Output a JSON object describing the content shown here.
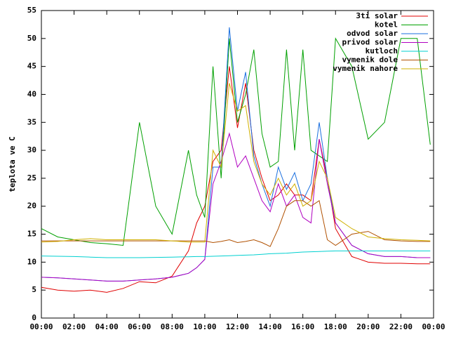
{
  "chart_data": {
    "type": "line",
    "ylabel": "teplota ve C",
    "x": [
      0,
      1,
      2,
      3,
      4,
      5,
      6,
      7,
      8,
      9,
      9.5,
      10,
      10.5,
      11,
      11.5,
      12,
      12.5,
      13,
      13.5,
      14,
      14.5,
      15,
      15.5,
      16,
      16.5,
      17,
      17.5,
      18,
      19,
      20,
      21,
      22,
      23,
      23.8
    ],
    "xlim": [
      0,
      24
    ],
    "xticks": [
      {
        "value": 0,
        "label": "00:00"
      },
      {
        "value": 2,
        "label": "02:00"
      },
      {
        "value": 4,
        "label": "04:00"
      },
      {
        "value": 6,
        "label": "06:00"
      },
      {
        "value": 8,
        "label": "08:00"
      },
      {
        "value": 10,
        "label": "10:00"
      },
      {
        "value": 12,
        "label": "12:00"
      },
      {
        "value": 14,
        "label": "14:00"
      },
      {
        "value": 16,
        "label": "16:00"
      },
      {
        "value": 18,
        "label": "18:00"
      },
      {
        "value": 20,
        "label": "20:00"
      },
      {
        "value": 22,
        "label": "22:00"
      },
      {
        "value": 24,
        "label": "00:00"
      }
    ],
    "ylim": [
      0,
      55
    ],
    "yticks": [
      0,
      5,
      10,
      15,
      20,
      25,
      30,
      35,
      40,
      45,
      50,
      55
    ],
    "legend": "top-right",
    "series": [
      {
        "name": "3ti solar",
        "color": "#e00000",
        "values": [
          5.5,
          5,
          4.8,
          5,
          4.6,
          5.3,
          6.5,
          6.3,
          7.5,
          12,
          17,
          20,
          28,
          30,
          45,
          34,
          42,
          30,
          25,
          21,
          22,
          24,
          22,
          22,
          21,
          32,
          25,
          16,
          11,
          10,
          9.8,
          9.8,
          9.7,
          9.7
        ]
      },
      {
        "name": "kotel",
        "color": "#00a000",
        "values": [
          16,
          14.5,
          14,
          13.5,
          13.3,
          13,
          35,
          20,
          15,
          30,
          22,
          18,
          45,
          25,
          50,
          35,
          40,
          48,
          33,
          27,
          28,
          48,
          30,
          48,
          30,
          29,
          28,
          50,
          45,
          32,
          35,
          50,
          50,
          31
        ]
      },
      {
        "name": "odvod solar",
        "color": "#1a6fdf",
        "values": [
          7.3,
          7.2,
          7,
          6.8,
          6.6,
          6.6,
          6.8,
          7,
          7.3,
          8,
          9,
          10.5,
          27,
          27,
          52,
          37,
          44,
          29,
          24,
          20,
          27,
          23,
          26,
          21,
          24,
          35,
          25,
          17,
          13,
          11.5,
          11,
          11,
          10.8,
          10.8
        ]
      },
      {
        "name": "privod solar",
        "color": "#b000c0",
        "values": [
          7.3,
          7.2,
          7,
          6.8,
          6.6,
          6.6,
          6.8,
          7,
          7.3,
          8,
          9,
          10.5,
          24,
          28,
          33,
          27,
          29,
          25,
          21,
          19,
          24,
          20,
          22,
          18,
          17,
          32,
          24,
          17,
          13,
          11.5,
          11,
          11,
          10.8,
          10.8
        ]
      },
      {
        "name": "kutloch",
        "color": "#00d0d0",
        "values": [
          11.1,
          11.05,
          11,
          10.9,
          10.8,
          10.8,
          10.8,
          10.85,
          10.9,
          10.95,
          11,
          11,
          11.05,
          11.1,
          11.15,
          11.2,
          11.25,
          11.3,
          11.4,
          11.5,
          11.55,
          11.6,
          11.7,
          11.8,
          11.85,
          11.9,
          11.95,
          12,
          12,
          12,
          12,
          12,
          12,
          12
        ]
      },
      {
        "name": "vymenik dole",
        "color": "#b05000",
        "values": [
          13.8,
          13.8,
          13.8,
          13.8,
          13.8,
          13.8,
          13.8,
          13.8,
          13.8,
          13.8,
          13.8,
          13.8,
          13.5,
          13.7,
          14,
          13.5,
          13.7,
          14,
          13.5,
          12.8,
          16,
          20,
          21,
          21,
          20,
          21,
          14,
          13,
          15,
          15.5,
          14,
          13.8,
          13.7,
          13.7
        ]
      },
      {
        "name": "vymenik nahore",
        "color": "#d0b000",
        "values": [
          13.6,
          13.7,
          14,
          14.2,
          14,
          14,
          14,
          14,
          13.8,
          13.6,
          13.6,
          13.6,
          30,
          27,
          42,
          37,
          38,
          28,
          24,
          22,
          25,
          22,
          24,
          20,
          21,
          28,
          25,
          18,
          16,
          14.5,
          14.2,
          14,
          13.9,
          13.8
        ]
      }
    ]
  }
}
